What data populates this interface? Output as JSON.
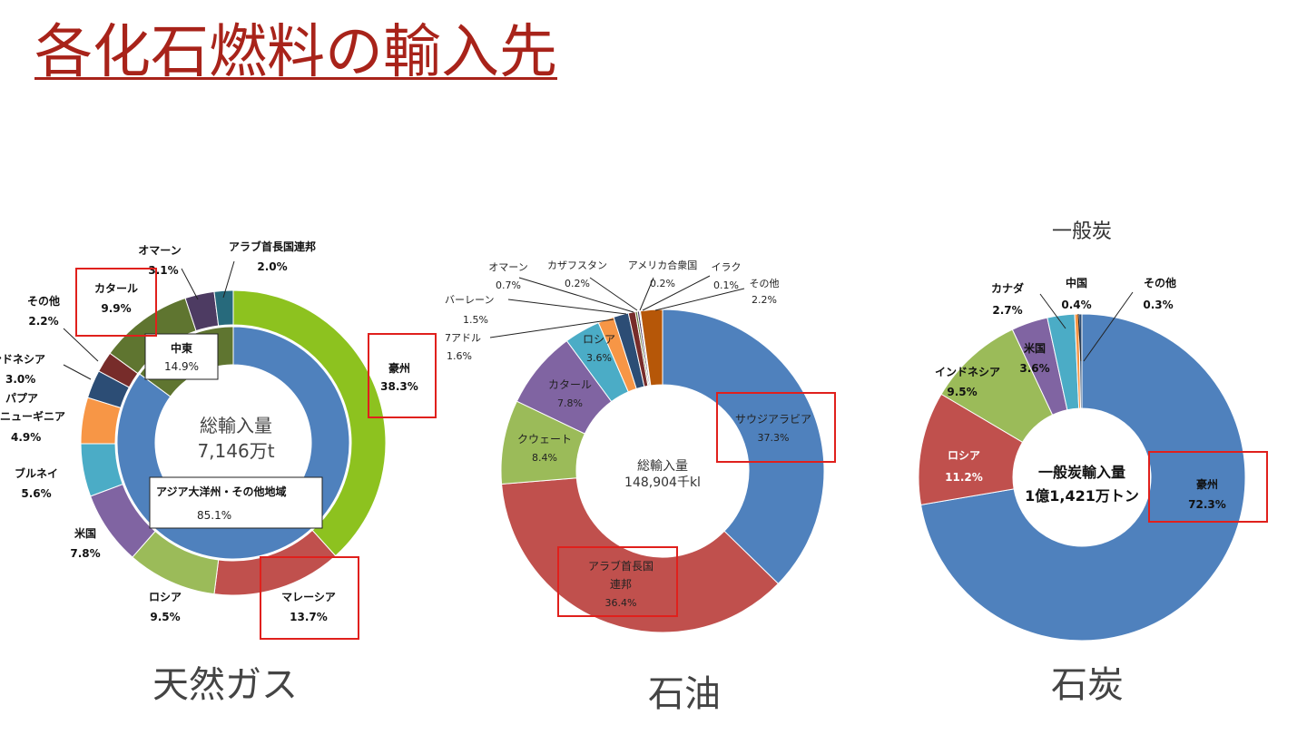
{
  "slide": {
    "title": "各化石燃料の輸入先"
  },
  "colors": {
    "title": "#a8231a",
    "highlight": "#e0201c"
  },
  "chart_data": [
    {
      "type": "pie",
      "variant": "nested-donut",
      "caption": "天然ガス",
      "center": {
        "label": "総輸入量",
        "value": "7,146万t"
      },
      "outer_slices": [
        {
          "name": "豪州",
          "value": 38.3,
          "label": "38.3%",
          "color": "#8dc21f",
          "highlight": true
        },
        {
          "name": "マレーシア",
          "value": 13.7,
          "label": "13.7%",
          "color": "#c0504d",
          "highlight": true
        },
        {
          "name": "ロシア",
          "value": 9.5,
          "label": "9.5%",
          "color": "#9bbb59"
        },
        {
          "name": "米国",
          "value": 7.8,
          "label": "7.8%",
          "color": "#8064a2"
        },
        {
          "name": "ブルネイ",
          "value": 5.6,
          "label": "5.6%",
          "color": "#4bacc6"
        },
        {
          "name": "パプア\nニューギニア",
          "value": 4.9,
          "label": "4.9%",
          "color": "#f79646"
        },
        {
          "name": "インドネシア",
          "value": 3.0,
          "label": "3.0%",
          "color": "#2c4d75"
        },
        {
          "name": "その他",
          "value": 2.2,
          "label": "2.2%",
          "color": "#772c2a"
        },
        {
          "name": "カタール",
          "value": 9.9,
          "label": "9.9%",
          "color": "#5f7530",
          "highlight": true
        },
        {
          "name": "オマーン",
          "value": 3.1,
          "label": "3.1%",
          "color": "#4d3b62"
        },
        {
          "name": "アラブ首長国連邦",
          "value": 2.0,
          "label": "2.0%",
          "color": "#276a7c"
        }
      ],
      "inner_slices": [
        {
          "name": "アジア大洋州・その他地域",
          "value": 85.1,
          "label": "85.1%",
          "color": "#4f81bd"
        },
        {
          "name": "中東",
          "value": 14.9,
          "label": "14.9%",
          "color": "#5f7530"
        }
      ]
    },
    {
      "type": "pie",
      "variant": "donut",
      "caption": "石油",
      "center": {
        "label": "総輸入量",
        "value": "148,904千kl"
      },
      "slices": [
        {
          "name": "サウジアラビア",
          "value": 37.3,
          "label": "37.3%",
          "color": "#4f81bd",
          "highlight": true
        },
        {
          "name": "アラブ首長国\n連邦",
          "value": 36.4,
          "label": "36.4%",
          "color": "#c0504d",
          "highlight": true
        },
        {
          "name": "クウェート",
          "value": 8.4,
          "label": "8.4%",
          "color": "#9bbb59"
        },
        {
          "name": "カタール",
          "value": 7.8,
          "label": "7.8%",
          "color": "#8064a2"
        },
        {
          "name": "ロシア",
          "value": 3.6,
          "label": "3.6%",
          "color": "#4bacc6"
        },
        {
          "name": "エクアドル",
          "value": 1.6,
          "label": "1.6%",
          "color": "#f79646"
        },
        {
          "name": "バーレーン",
          "value": 1.5,
          "label": "1.5%",
          "color": "#2c4d75"
        },
        {
          "name": "オマーン",
          "value": 0.7,
          "label": "0.7%",
          "color": "#772c2a"
        },
        {
          "name": "カザフスタン",
          "value": 0.2,
          "label": "0.2%",
          "color": "#5f7530"
        },
        {
          "name": "アメリカ合衆国",
          "value": 0.2,
          "label": "0.2%",
          "color": "#4d3b62"
        },
        {
          "name": "イラク",
          "value": 0.1,
          "label": "0.1%",
          "color": "#276a7c"
        },
        {
          "name": "その他",
          "value": 2.2,
          "label": "2.2%",
          "color": "#b65708"
        }
      ],
      "visible_cropped_labels": {
        "ecuador": "7アドル",
        "bahrain": "バーレーン"
      }
    },
    {
      "type": "pie",
      "variant": "donut",
      "title": "一般炭",
      "caption": "石炭",
      "center": {
        "label": "一般炭輸入量",
        "value": "1億1,421万トン"
      },
      "slices": [
        {
          "name": "豪州",
          "value": 72.3,
          "label": "72.3%",
          "color": "#4f81bd",
          "highlight": true
        },
        {
          "name": "ロシア",
          "value": 11.2,
          "label": "11.2%",
          "color": "#c0504d"
        },
        {
          "name": "インドネシア",
          "value": 9.5,
          "label": "9.5%",
          "color": "#9bbb59"
        },
        {
          "name": "米国",
          "value": 3.6,
          "label": "3.6%",
          "color": "#8064a2"
        },
        {
          "name": "カナダ",
          "value": 2.7,
          "label": "2.7%",
          "color": "#4bacc6"
        },
        {
          "name": "中国",
          "value": 0.4,
          "label": "0.4%",
          "color": "#f79646"
        },
        {
          "name": "その他",
          "value": 0.3,
          "label": "0.3%",
          "color": "#2c4d75"
        }
      ]
    }
  ]
}
